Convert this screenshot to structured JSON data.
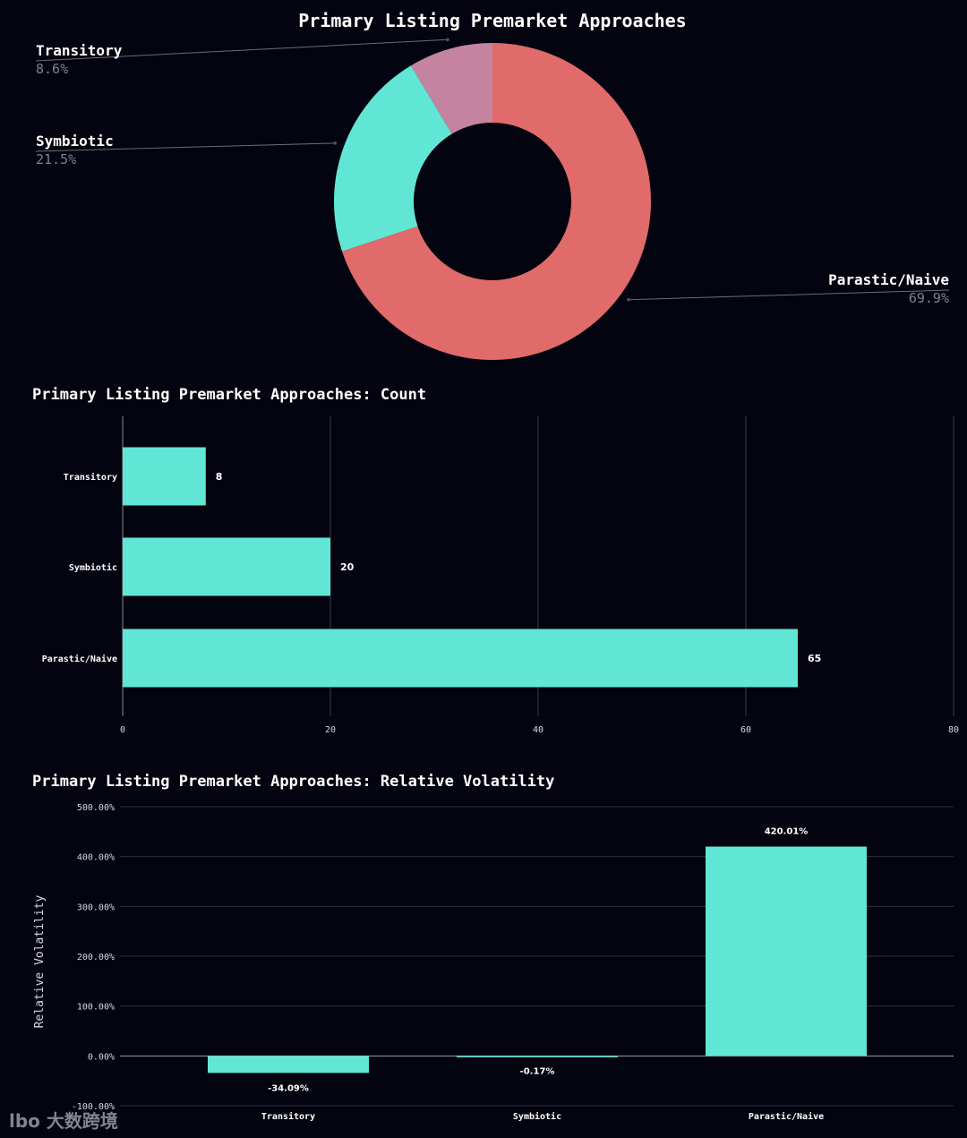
{
  "chart_data": [
    {
      "type": "pie",
      "title": "Primary Listing Premarket Approaches",
      "slices": [
        {
          "label": "Parastic/Naive",
          "percent_label": "69.9%",
          "value": 69.9,
          "color": "#e06b6a"
        },
        {
          "label": "Symbiotic",
          "percent_label": "21.5%",
          "value": 21.5,
          "color": "#61e6d6"
        },
        {
          "label": "Transitory",
          "percent_label": "8.6%",
          "value": 8.6,
          "color": "#c4849f"
        }
      ]
    },
    {
      "type": "bar",
      "orientation": "horizontal",
      "title": "Primary Listing Premarket Approaches: Count",
      "categories": [
        "Transitory",
        "Symbiotic",
        "Parastic/Naive"
      ],
      "values": [
        8,
        20,
        65
      ],
      "value_labels": [
        "8",
        "20",
        "65"
      ],
      "xlim": [
        0,
        80
      ],
      "xticks": [
        "0",
        "20",
        "40",
        "60",
        "80"
      ],
      "grid": true,
      "color": "#61e6d6"
    },
    {
      "type": "bar",
      "orientation": "vertical",
      "title": "Primary Listing Premarket Approaches: Relative Volatility",
      "ylabel": "Relative Volatility",
      "categories": [
        "Transitory",
        "Symbiotic",
        "Parastic/Naive"
      ],
      "values": [
        -34.09,
        -0.17,
        420.01
      ],
      "value_labels": [
        "-34.09%",
        "-0.17%",
        "420.01%"
      ],
      "ylim": [
        -100,
        500
      ],
      "yticks": [
        "-100.00%",
        "0.00%",
        "100.00%",
        "200.00%",
        "300.00%",
        "400.00%",
        "500.00%"
      ],
      "grid": true,
      "color": "#61e6d6"
    }
  ],
  "watermark": "大数跨境"
}
